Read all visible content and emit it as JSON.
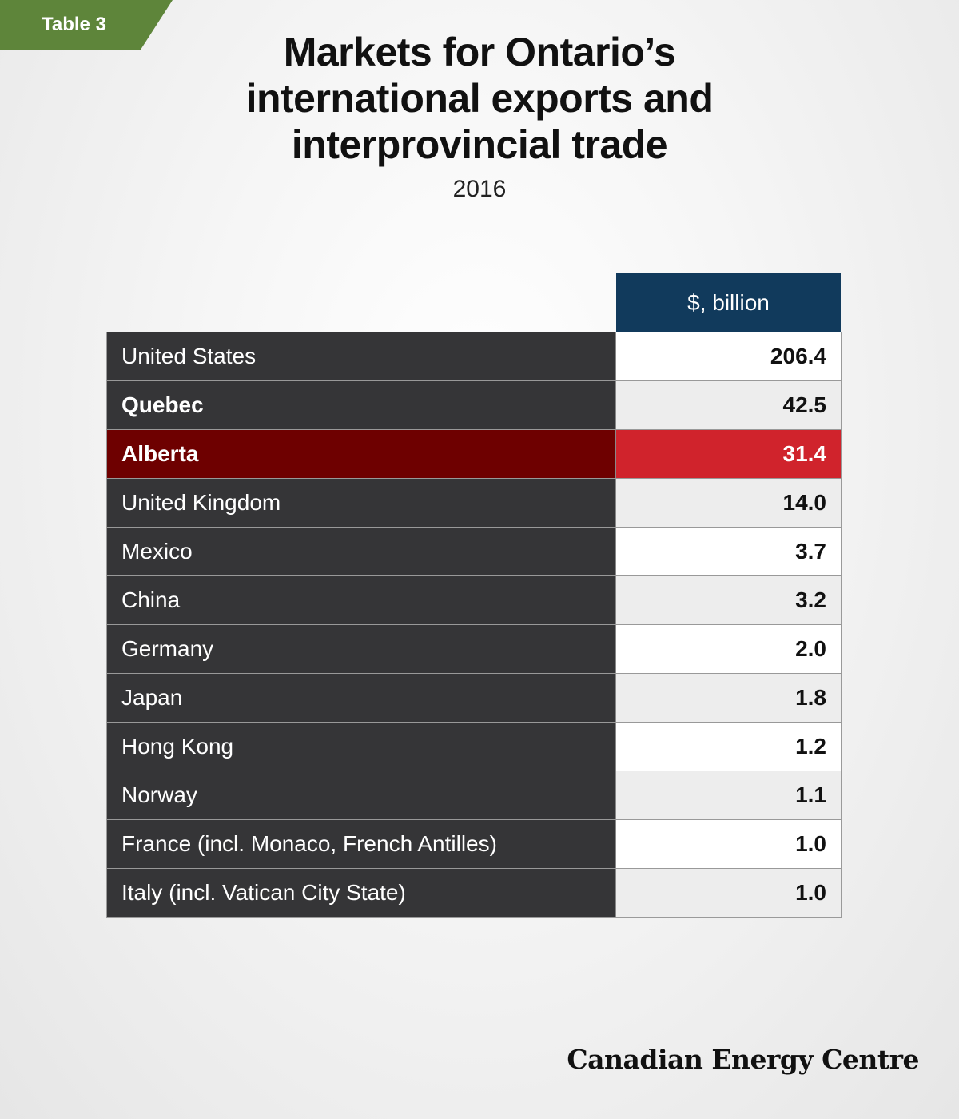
{
  "tag": {
    "label": "Table 3"
  },
  "title": {
    "lines": [
      "Markets for Ontario’s",
      "international exports and",
      "interprovincial trade"
    ],
    "subtitle": "2016"
  },
  "table": {
    "column_header": "$, billion",
    "rows": [
      {
        "name": "United States",
        "value": "206.4",
        "bold": false,
        "highlight": false
      },
      {
        "name": "Quebec",
        "value": "42.5",
        "bold": true,
        "highlight": false
      },
      {
        "name": "Alberta",
        "value": "31.4",
        "bold": true,
        "highlight": true
      },
      {
        "name": "United Kingdom",
        "value": "14.0",
        "bold": false,
        "highlight": false
      },
      {
        "name": "Mexico",
        "value": "3.7",
        "bold": false,
        "highlight": false
      },
      {
        "name": "China",
        "value": "3.2",
        "bold": false,
        "highlight": false
      },
      {
        "name": "Germany",
        "value": "2.0",
        "bold": false,
        "highlight": false
      },
      {
        "name": "Japan",
        "value": "1.8",
        "bold": false,
        "highlight": false
      },
      {
        "name": "Hong Kong",
        "value": "1.2",
        "bold": false,
        "highlight": false
      },
      {
        "name": "Norway",
        "value": "1.1",
        "bold": false,
        "highlight": false
      },
      {
        "name": "France (incl. Monaco, French Antilles)",
        "value": "1.0",
        "bold": false,
        "highlight": false
      },
      {
        "name": "Italy (incl. Vatican City State)",
        "value": "1.0",
        "bold": false,
        "highlight": false
      }
    ]
  },
  "chart_data": {
    "type": "table",
    "title": "Markets for Ontario’s international exports and interprovincial trade",
    "subtitle": "2016",
    "columns": [
      "",
      "$, billion"
    ],
    "categories": [
      "United States",
      "Quebec",
      "Alberta",
      "United Kingdom",
      "Mexico",
      "China",
      "Germany",
      "Japan",
      "Hong Kong",
      "Norway",
      "France (incl. Monaco, French Antilles)",
      "Italy (incl. Vatican City State)"
    ],
    "values": [
      206.4,
      42.5,
      31.4,
      14.0,
      3.7,
      3.2,
      2.0,
      1.8,
      1.2,
      1.1,
      1.0,
      1.0
    ],
    "highlighted": [
      "Alberta"
    ]
  },
  "colors": {
    "tag": "#5e853a",
    "header": "#113a5c",
    "row_label": "#353537",
    "highlight_label": "#6e0000",
    "highlight_value": "#d0232c"
  },
  "footer": {
    "brand": "Canadian Energy Centre"
  }
}
